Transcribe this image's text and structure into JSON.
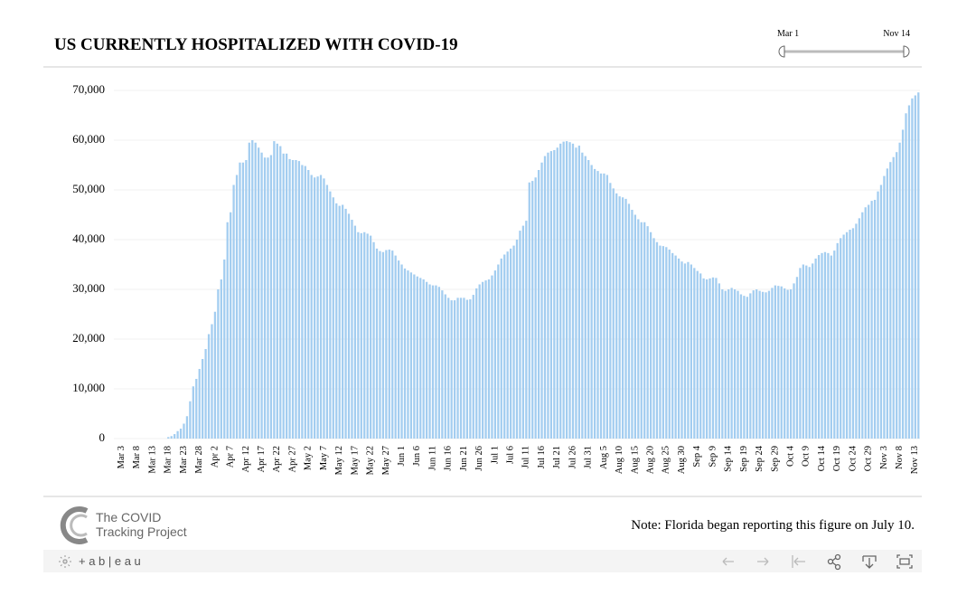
{
  "chart_data": {
    "type": "bar",
    "title": "US CURRENTLY HOSPITALIZED WITH COVID-19",
    "range_start": "Mar 1",
    "range_end": "Nov 14",
    "note": "Note: Florida began reporting this figure on July 10.",
    "logo_line1": "The COVID",
    "logo_line2": "Tracking Project",
    "brand": "+ a b | e a u",
    "color": "#a3cdf0",
    "grid": true,
    "ylim": [
      0,
      70000
    ],
    "yticks": [
      0,
      {
        "value": 10000,
        "label": "10,000"
      },
      {
        "value": 20000,
        "label": "20,000"
      },
      {
        "value": 30000,
        "label": "30,000"
      },
      {
        "value": 40000,
        "label": "40,000"
      },
      {
        "value": 50000,
        "label": "50,000"
      },
      {
        "value": 60000,
        "label": "60,000"
      },
      {
        "value": 70000,
        "label": "70,000"
      }
    ],
    "categories": [
      null,
      null,
      "Mar 3",
      null,
      null,
      null,
      null,
      "Mar 8",
      null,
      null,
      null,
      null,
      "Mar 13",
      null,
      null,
      null,
      null,
      "Mar 18",
      null,
      null,
      null,
      null,
      "Mar 23",
      null,
      null,
      null,
      null,
      "Mar 28",
      null,
      null,
      null,
      null,
      "Apr 2",
      null,
      null,
      null,
      null,
      "Apr 7",
      null,
      null,
      null,
      null,
      "Apr 12",
      null,
      null,
      null,
      null,
      "Apr 17",
      null,
      null,
      null,
      null,
      "Apr 22",
      null,
      null,
      null,
      null,
      "Apr 27",
      null,
      null,
      null,
      null,
      "May 2",
      null,
      null,
      null,
      null,
      "May 7",
      null,
      null,
      null,
      null,
      "May 12",
      null,
      null,
      null,
      null,
      "May 17",
      null,
      null,
      null,
      null,
      "May 22",
      null,
      null,
      null,
      null,
      "May 27",
      null,
      null,
      null,
      null,
      "Jun 1",
      null,
      null,
      null,
      null,
      "Jun 6",
      null,
      null,
      null,
      null,
      "Jun 11",
      null,
      null,
      null,
      null,
      "Jun 16",
      null,
      null,
      null,
      null,
      "Jun 21",
      null,
      null,
      null,
      null,
      "Jun 26",
      null,
      null,
      null,
      null,
      "Jul 1",
      null,
      null,
      null,
      null,
      "Jul 6",
      null,
      null,
      null,
      null,
      "Jul 11",
      null,
      null,
      null,
      null,
      "Jul 16",
      null,
      null,
      null,
      null,
      "Jul 21",
      null,
      null,
      null,
      null,
      "Jul 26",
      null,
      null,
      null,
      null,
      "Jul 31",
      null,
      null,
      null,
      null,
      "Aug 5",
      null,
      null,
      null,
      null,
      "Aug 10",
      null,
      null,
      null,
      null,
      "Aug 15",
      null,
      null,
      null,
      null,
      "Aug 20",
      null,
      null,
      null,
      null,
      "Aug 25",
      null,
      null,
      null,
      null,
      "Aug 30",
      null,
      null,
      null,
      null,
      "Sep 4",
      null,
      null,
      null,
      null,
      "Sep 9",
      null,
      null,
      null,
      null,
      "Sep 14",
      null,
      null,
      null,
      null,
      "Sep 19",
      null,
      null,
      null,
      null,
      "Sep 24",
      null,
      null,
      null,
      null,
      "Sep 29",
      null,
      null,
      null,
      null,
      "Oct 4",
      null,
      null,
      null,
      null,
      "Oct 9",
      null,
      null,
      null,
      null,
      "Oct 14",
      null,
      null,
      null,
      null,
      "Oct 19",
      null,
      null,
      null,
      null,
      "Oct 24",
      null,
      null,
      null,
      null,
      "Oct 29",
      null,
      null,
      null,
      null,
      "Nov 3",
      null,
      null,
      null,
      null,
      "Nov 8",
      null,
      null,
      null,
      null,
      "Nov 13",
      null
    ],
    "values": [
      null,
      null,
      null,
      null,
      null,
      null,
      null,
      null,
      null,
      null,
      null,
      null,
      null,
      null,
      null,
      null,
      null,
      300,
      500,
      900,
      1500,
      2000,
      3000,
      4500,
      7500,
      10500,
      12000,
      14000,
      16000,
      18000,
      21000,
      23000,
      25500,
      30000,
      32000,
      36000,
      43500,
      45500,
      51000,
      53000,
      55500,
      55500,
      56000,
      59500,
      60000,
      59500,
      58500,
      57500,
      56500,
      56500,
      57000,
      59800,
      59300,
      58800,
      57300,
      57300,
      56200,
      56000,
      56000,
      55800,
      55000,
      54800,
      54000,
      53000,
      52500,
      52700,
      53000,
      52300,
      51000,
      49700,
      48500,
      47300,
      46800,
      47000,
      46200,
      45200,
      44000,
      42800,
      41500,
      41300,
      41500,
      41200,
      40800,
      39500,
      38200,
      37700,
      37500,
      37900,
      38000,
      37800,
      36800,
      35800,
      35000,
      34200,
      33800,
      33400,
      33000,
      32600,
      32300,
      32000,
      31500,
      31000,
      30800,
      30800,
      30500,
      29800,
      29000,
      28300,
      27800,
      27800,
      28300,
      28300,
      28300,
      27900,
      28000,
      28900,
      30200,
      31000,
      31500,
      31800,
      32000,
      32800,
      33800,
      35000,
      36200,
      37000,
      37600,
      38200,
      38800,
      40000,
      41800,
      42800,
      43800,
      51500,
      51800,
      52500,
      54000,
      55500,
      56800,
      57500,
      57800,
      58000,
      58500,
      59300,
      59700,
      59800,
      59600,
      59300,
      58500,
      58900,
      57500,
      56800,
      56000,
      55000,
      54200,
      53800,
      53300,
      53300,
      53000,
      51400,
      50300,
      49300,
      48700,
      48500,
      48200,
      47200,
      46000,
      45000,
      44100,
      43500,
      43500,
      42700,
      41500,
      40300,
      39500,
      38800,
      38700,
      38500,
      38000,
      37300,
      36800,
      36200,
      35600,
      35200,
      35500,
      35000,
      34300,
      33700,
      33200,
      32200,
      32000,
      32200,
      32400,
      32300,
      31200,
      30000,
      29700,
      30000,
      30300,
      30000,
      29700,
      29000,
      28700,
      28500,
      29200,
      29800,
      30000,
      29700,
      29500,
      29400,
      29700,
      30300,
      30800,
      30700,
      30600,
      30200,
      29900,
      30000,
      31200,
      32500,
      34300,
      35000,
      34800,
      34500,
      35200,
      36200,
      36900,
      37300,
      37500,
      37300,
      36800,
      37800,
      39300,
      40300,
      41000,
      41500,
      42000,
      42300,
      43200,
      44300,
      45500,
      46500,
      47000,
      47800,
      48000,
      49700,
      51000,
      52800,
      54300,
      55600,
      56600,
      57600,
      59500,
      62100,
      65400,
      67000,
      68400,
      69000,
      69600
    ]
  }
}
